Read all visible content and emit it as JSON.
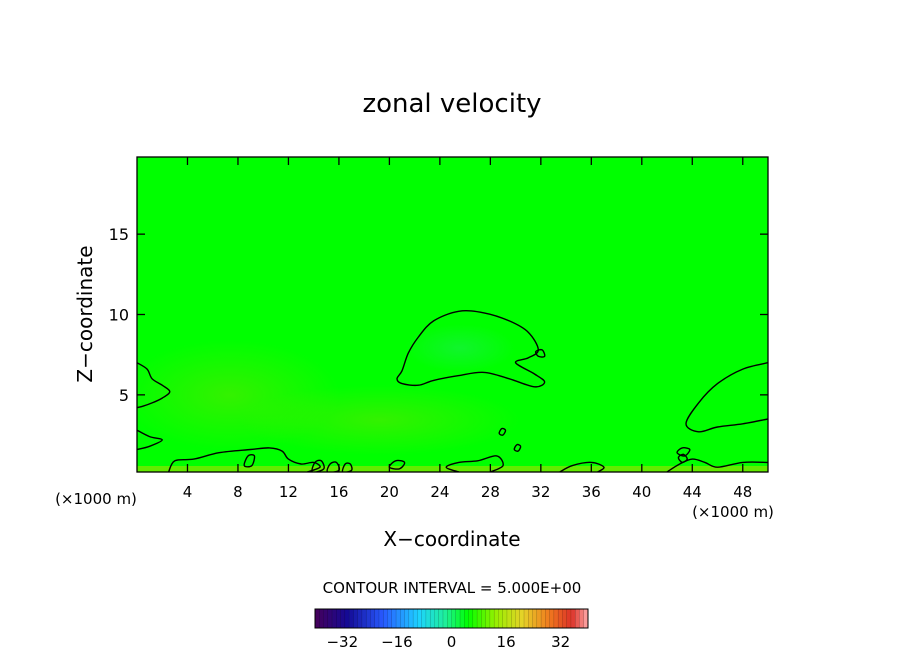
{
  "chart_data": {
    "type": "heatmap",
    "title": "zonal velocity",
    "xlabel": "X−coordinate",
    "ylabel": "Z−coordinate",
    "x_units_left": "(×1000 m)",
    "x_units_right": "(×1000 m)",
    "xlim": [
      0,
      50
    ],
    "ylim": [
      0.2,
      19.8
    ],
    "x_ticks": [
      4,
      8,
      12,
      16,
      20,
      24,
      28,
      32,
      36,
      40,
      44,
      48
    ],
    "x_tick_labels": [
      "4",
      "8",
      "12",
      "16",
      "20",
      "24",
      "28",
      "32",
      "36",
      "40",
      "44",
      "48"
    ],
    "y_ticks": [
      5,
      10,
      15
    ],
    "y_tick_labels": [
      "5",
      "10",
      "15"
    ],
    "contour_interval_text": "CONTOUR INTERVAL = 5.000E+00",
    "colorbar": {
      "range": [
        -40,
        40
      ],
      "tick_values": [
        -32,
        -16,
        0,
        16,
        32
      ],
      "tick_labels": [
        "−32",
        "−16",
        "0",
        "16",
        "32"
      ]
    },
    "contours": [
      {
        "name": "jet-core",
        "points": [
          [
            21.0,
            6.5
          ],
          [
            21.5,
            7.6
          ],
          [
            22.3,
            8.6
          ],
          [
            23.5,
            9.6
          ],
          [
            25.5,
            10.2
          ],
          [
            27.5,
            10.1
          ],
          [
            29.5,
            9.6
          ],
          [
            31.0,
            8.9
          ],
          [
            31.8,
            7.8
          ],
          [
            31.0,
            7.3
          ],
          [
            30.0,
            7.0
          ],
          [
            31.5,
            6.3
          ],
          [
            32.3,
            5.8
          ],
          [
            31.5,
            5.5
          ],
          [
            29.5,
            6.0
          ],
          [
            27.5,
            6.4
          ],
          [
            25.5,
            6.2
          ],
          [
            23.5,
            5.9
          ],
          [
            22.3,
            5.6
          ],
          [
            21.0,
            5.7
          ],
          [
            20.6,
            6.0
          ]
        ],
        "closed": true
      },
      {
        "name": "right-cell",
        "points": [
          [
            50.0,
            7.0
          ],
          [
            48.0,
            6.6
          ],
          [
            46.0,
            5.7
          ],
          [
            44.5,
            4.5
          ],
          [
            43.5,
            3.2
          ],
          [
            44.5,
            2.7
          ],
          [
            46.0,
            3.0
          ],
          [
            48.0,
            3.2
          ],
          [
            50.0,
            3.5
          ]
        ],
        "closed": false
      },
      {
        "name": "left-cell",
        "points": [
          [
            0.0,
            7.0
          ],
          [
            0.8,
            6.6
          ],
          [
            1.2,
            6.0
          ],
          [
            2.0,
            5.6
          ],
          [
            2.6,
            5.2
          ],
          [
            2.0,
            4.8
          ],
          [
            1.2,
            4.5
          ],
          [
            0.5,
            4.3
          ],
          [
            0.0,
            4.2
          ]
        ],
        "closed": false
      },
      {
        "name": "left-lower",
        "points": [
          [
            0.0,
            2.8
          ],
          [
            1.0,
            2.4
          ],
          [
            2.0,
            2.2
          ],
          [
            1.0,
            1.8
          ],
          [
            0.0,
            1.6
          ]
        ],
        "closed": false
      },
      {
        "name": "low-band-1",
        "points": [
          [
            2.5,
            0.2
          ],
          [
            3.0,
            0.9
          ],
          [
            4.5,
            1.0
          ],
          [
            6.5,
            1.4
          ],
          [
            9.0,
            1.6
          ],
          [
            10.5,
            1.7
          ],
          [
            11.5,
            1.5
          ],
          [
            12.0,
            1.0
          ],
          [
            13.0,
            0.7
          ],
          [
            14.0,
            0.8
          ],
          [
            14.5,
            0.5
          ],
          [
            13.5,
            0.2
          ]
        ],
        "closed": false
      },
      {
        "name": "low-band-2",
        "points": [
          [
            25.5,
            0.2
          ],
          [
            24.5,
            0.5
          ],
          [
            25.5,
            0.8
          ],
          [
            27.0,
            0.9
          ],
          [
            28.5,
            1.2
          ],
          [
            29.0,
            0.6
          ],
          [
            28.0,
            0.2
          ]
        ],
        "closed": false
      },
      {
        "name": "low-band-3",
        "points": [
          [
            33.5,
            0.2
          ],
          [
            34.5,
            0.6
          ],
          [
            36.0,
            0.8
          ],
          [
            37.0,
            0.5
          ],
          [
            36.5,
            0.2
          ]
        ],
        "closed": false
      },
      {
        "name": "low-band-4",
        "points": [
          [
            42.0,
            0.2
          ],
          [
            43.0,
            0.7
          ],
          [
            44.0,
            1.0
          ],
          [
            45.0,
            0.8
          ],
          [
            46.0,
            0.5
          ],
          [
            48.0,
            0.8
          ],
          [
            50.0,
            0.8
          ]
        ],
        "closed": false
      },
      {
        "name": "loop-1",
        "points": [
          [
            13.9,
            0.2
          ],
          [
            14.1,
            0.8
          ],
          [
            14.6,
            0.9
          ],
          [
            14.8,
            0.4
          ]
        ],
        "closed": true
      },
      {
        "name": "loop-2",
        "points": [
          [
            15.1,
            0.2
          ],
          [
            15.3,
            0.7
          ],
          [
            15.8,
            0.8
          ],
          [
            16.0,
            0.3
          ]
        ],
        "closed": true
      },
      {
        "name": "loop-3",
        "points": [
          [
            16.3,
            0.2
          ],
          [
            16.5,
            0.7
          ],
          [
            16.9,
            0.7
          ],
          [
            17.0,
            0.3
          ]
        ],
        "closed": true
      },
      {
        "name": "loop-4",
        "points": [
          [
            8.5,
            0.6
          ],
          [
            8.8,
            1.2
          ],
          [
            9.3,
            1.2
          ],
          [
            9.1,
            0.6
          ]
        ],
        "closed": true
      },
      {
        "name": "loop-5",
        "points": [
          [
            20.0,
            0.5
          ],
          [
            20.5,
            0.9
          ],
          [
            21.2,
            0.8
          ],
          [
            20.8,
            0.4
          ]
        ],
        "closed": true
      },
      {
        "name": "loop-6",
        "points": [
          [
            28.7,
            2.6
          ],
          [
            28.9,
            2.9
          ],
          [
            29.2,
            2.8
          ],
          [
            29.0,
            2.5
          ]
        ],
        "closed": true
      },
      {
        "name": "loop-7",
        "points": [
          [
            29.9,
            1.6
          ],
          [
            30.1,
            1.9
          ],
          [
            30.4,
            1.8
          ],
          [
            30.2,
            1.5
          ]
        ],
        "closed": true
      },
      {
        "name": "loop-8",
        "points": [
          [
            31.6,
            7.7
          ],
          [
            31.8,
            7.4
          ],
          [
            32.3,
            7.4
          ],
          [
            32.1,
            7.8
          ]
        ],
        "closed": true
      },
      {
        "name": "loop-9",
        "points": [
          [
            42.8,
            1.4
          ],
          [
            43.2,
            1.7
          ],
          [
            43.8,
            1.6
          ],
          [
            43.4,
            1.2
          ]
        ],
        "closed": true
      },
      {
        "name": "loop-10",
        "points": [
          [
            42.9,
            1.1
          ],
          [
            43.3,
            1.3
          ],
          [
            43.6,
            1.0
          ],
          [
            43.2,
            0.8
          ]
        ],
        "closed": true
      }
    ]
  }
}
